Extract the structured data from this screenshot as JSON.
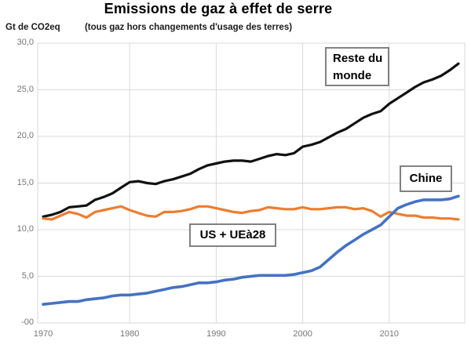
{
  "header": {
    "title": "Emissions de gaz à effet de serre",
    "subtitle": "(tous gaz hors changements d'usage des terres)",
    "unit_label": "Gt de CO2eq"
  },
  "colors": {
    "reste_du_monde": "#111111",
    "us_ue": "#ED7D31",
    "chine": "#4472C4",
    "grid": "#d9d9d9",
    "tick_text": "#767676",
    "annotation_border": "#818181",
    "background": "#ffffff"
  },
  "chart_data": {
    "type": "line",
    "title": "Emissions de gaz à effet de serre",
    "subtitle": "(tous gaz hors changements d'usage des terres)",
    "ylabel": "Gt de CO2eq",
    "xlabel": "",
    "grid": true,
    "legend_position": "inline-boxed-annotations",
    "xlim": [
      1970,
      2018
    ],
    "ylim": [
      0,
      30
    ],
    "x_ticks": [
      "1970",
      "1980",
      "1990",
      "2000",
      "2010"
    ],
    "x_tick_values": [
      1970,
      1980,
      1990,
      2000,
      2010
    ],
    "y_ticks": [
      "30,0",
      "25,0",
      "20,0",
      "15,0",
      "10,0",
      "5,0",
      "-00"
    ],
    "y_tick_values": [
      30,
      25,
      20,
      15,
      10,
      5,
      0
    ],
    "x": [
      1970,
      1971,
      1972,
      1973,
      1974,
      1975,
      1976,
      1977,
      1978,
      1979,
      1980,
      1981,
      1982,
      1983,
      1984,
      1985,
      1986,
      1987,
      1988,
      1989,
      1990,
      1991,
      1992,
      1993,
      1994,
      1995,
      1996,
      1997,
      1998,
      1999,
      2000,
      2001,
      2002,
      2003,
      2004,
      2005,
      2006,
      2007,
      2008,
      2009,
      2010,
      2011,
      2012,
      2013,
      2014,
      2015,
      2016,
      2017,
      2018
    ],
    "series": [
      {
        "name": "Reste du monde",
        "color": "#111111",
        "stroke_width": 3.2,
        "values": [
          11.4,
          11.6,
          11.9,
          12.4,
          12.5,
          12.6,
          13.2,
          13.5,
          13.9,
          14.5,
          15.1,
          15.2,
          15.0,
          14.9,
          15.2,
          15.4,
          15.7,
          16.0,
          16.5,
          16.9,
          17.1,
          17.3,
          17.4,
          17.4,
          17.3,
          17.6,
          17.9,
          18.1,
          18.0,
          18.2,
          18.9,
          19.1,
          19.4,
          19.9,
          20.4,
          20.8,
          21.4,
          22.0,
          22.4,
          22.7,
          23.5,
          24.1,
          24.7,
          25.3,
          25.8,
          26.1,
          26.5,
          27.1,
          27.8
        ]
      },
      {
        "name": "US + UEà28",
        "color": "#ED7D31",
        "stroke_width": 3.2,
        "values": [
          11.2,
          11.1,
          11.5,
          11.9,
          11.7,
          11.3,
          11.9,
          12.1,
          12.3,
          12.5,
          12.1,
          11.8,
          11.5,
          11.4,
          11.9,
          11.9,
          12.0,
          12.2,
          12.5,
          12.5,
          12.3,
          12.1,
          11.9,
          11.8,
          12.0,
          12.1,
          12.4,
          12.3,
          12.2,
          12.2,
          12.4,
          12.2,
          12.2,
          12.3,
          12.4,
          12.4,
          12.2,
          12.3,
          12.0,
          11.4,
          11.9,
          11.7,
          11.5,
          11.5,
          11.3,
          11.3,
          11.2,
          11.2,
          11.1
        ]
      },
      {
        "name": "Chine",
        "color": "#4472C4",
        "stroke_width": 3.6,
        "values": [
          2.0,
          2.1,
          2.2,
          2.3,
          2.3,
          2.5,
          2.6,
          2.7,
          2.9,
          3.0,
          3.0,
          3.1,
          3.2,
          3.4,
          3.6,
          3.8,
          3.9,
          4.1,
          4.3,
          4.3,
          4.4,
          4.6,
          4.7,
          4.9,
          5.0,
          5.1,
          5.1,
          5.1,
          5.1,
          5.2,
          5.4,
          5.6,
          6.0,
          6.8,
          7.6,
          8.3,
          8.9,
          9.5,
          10.0,
          10.5,
          11.4,
          12.3,
          12.7,
          13.0,
          13.2,
          13.2,
          13.2,
          13.3,
          13.6
        ]
      }
    ],
    "annotations": [
      {
        "label": "Reste du\nmonde",
        "series": "Reste du monde"
      },
      {
        "label": "Chine",
        "series": "Chine"
      },
      {
        "label": "US + UEà28",
        "series": "US + UEà28"
      }
    ]
  }
}
